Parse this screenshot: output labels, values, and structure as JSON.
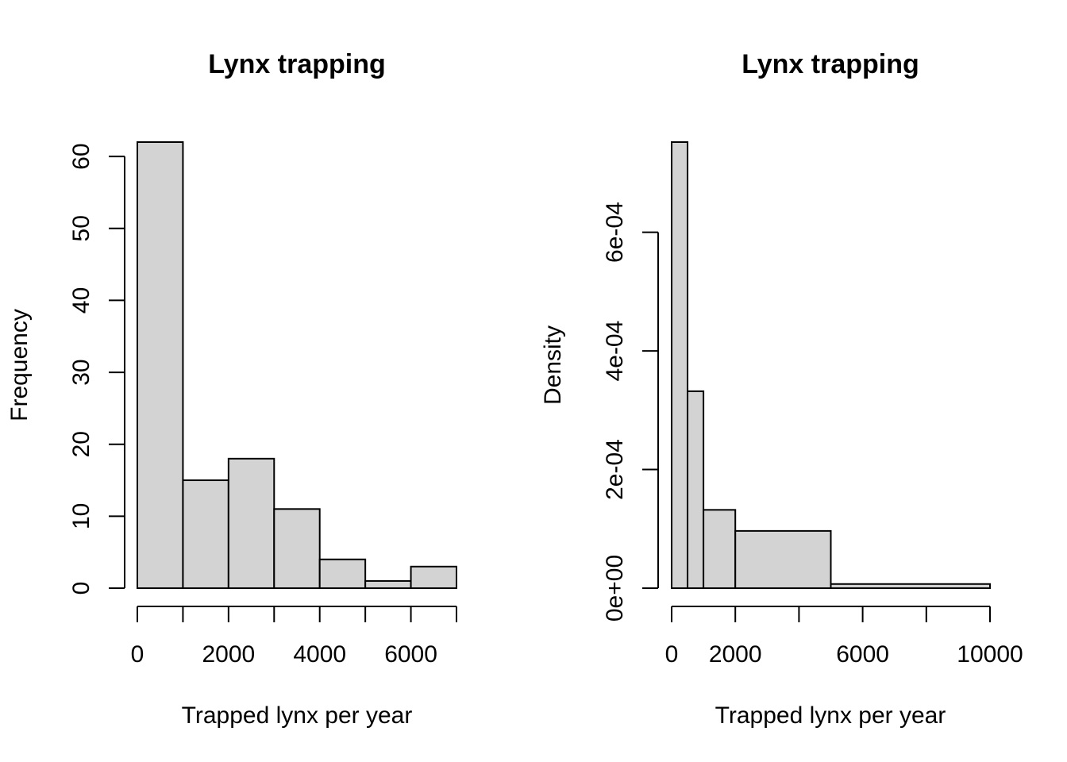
{
  "chart_data": [
    {
      "type": "bar",
      "title": "Lynx trapping",
      "xlabel": "Trapped lynx per year",
      "ylabel": "Frequency",
      "bins": [
        {
          "from": 0,
          "to": 1000,
          "value": 62
        },
        {
          "from": 1000,
          "to": 2000,
          "value": 15
        },
        {
          "from": 2000,
          "to": 3000,
          "value": 18
        },
        {
          "from": 3000,
          "to": 4000,
          "value": 11
        },
        {
          "from": 4000,
          "to": 5000,
          "value": 4
        },
        {
          "from": 5000,
          "to": 6000,
          "value": 1
        },
        {
          "from": 6000,
          "to": 7000,
          "value": 3
        }
      ],
      "xlim": [
        0,
        7000
      ],
      "ylim": [
        0,
        62
      ],
      "x_ticks": [
        0,
        1000,
        2000,
        3000,
        4000,
        5000,
        6000,
        7000
      ],
      "x_tick_labels": [
        {
          "value": 0,
          "label": "0"
        },
        {
          "value": 2000,
          "label": "2000"
        },
        {
          "value": 4000,
          "label": "4000"
        },
        {
          "value": 6000,
          "label": "6000"
        }
      ],
      "y_ticks": [
        {
          "value": 0,
          "label": "0"
        },
        {
          "value": 10,
          "label": "10"
        },
        {
          "value": 20,
          "label": "20"
        },
        {
          "value": 30,
          "label": "30"
        },
        {
          "value": 40,
          "label": "40"
        },
        {
          "value": 50,
          "label": "50"
        },
        {
          "value": 60,
          "label": "60"
        }
      ],
      "grid": false
    },
    {
      "type": "bar",
      "title": "Lynx trapping",
      "xlabel": "Trapped lynx per year",
      "ylabel": "Density",
      "bins": [
        {
          "from": 0,
          "to": 500,
          "value": 0.000752
        },
        {
          "from": 500,
          "to": 1000,
          "value": 0.000332
        },
        {
          "from": 1000,
          "to": 2000,
          "value": 0.000132
        },
        {
          "from": 2000,
          "to": 5000,
          "value": 9.65e-05
        },
        {
          "from": 5000,
          "to": 10000,
          "value": 7e-06
        }
      ],
      "xlim": [
        0,
        10000
      ],
      "ylim": [
        0,
        0.000752
      ],
      "x_ticks": [
        0,
        2000,
        4000,
        6000,
        8000,
        10000
      ],
      "x_tick_labels": [
        {
          "value": 0,
          "label": "0"
        },
        {
          "value": 2000,
          "label": "2000"
        },
        {
          "value": 6000,
          "label": "6000"
        },
        {
          "value": 10000,
          "label": "10000"
        }
      ],
      "y_ticks": [
        {
          "value": 0,
          "label": "0e+00"
        },
        {
          "value": 0.0002,
          "label": "2e-04"
        },
        {
          "value": 0.0004,
          "label": "4e-04"
        },
        {
          "value": 0.0006,
          "label": "6e-04"
        }
      ],
      "grid": false
    }
  ]
}
